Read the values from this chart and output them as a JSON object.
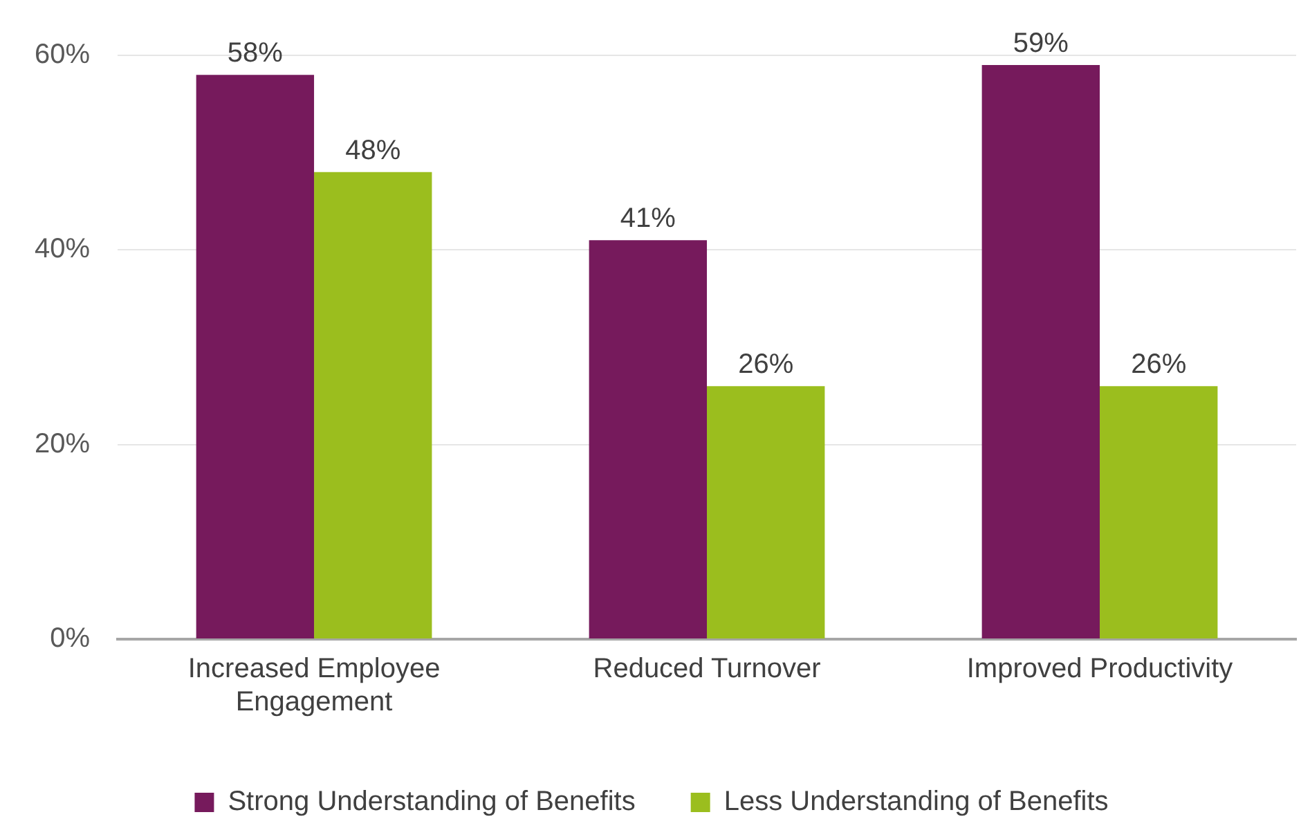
{
  "chart_data": {
    "type": "bar",
    "categories": [
      "Increased Employee Engagement",
      "Reduced Turnover",
      "Improved Productivity"
    ],
    "series": [
      {
        "name": "Strong Understanding of Benefits",
        "color": "#761a5c",
        "values": [
          58,
          41,
          59
        ]
      },
      {
        "name": "Less Understanding of Benefits",
        "color": "#9bbe1e",
        "values": [
          48,
          26,
          26
        ]
      }
    ],
    "ylim": [
      0,
      60
    ],
    "yticks": [
      {
        "value": 0,
        "label": "0%"
      },
      {
        "value": 20,
        "label": "20%"
      },
      {
        "value": 40,
        "label": "40%"
      },
      {
        "value": 60,
        "label": "60%"
      }
    ],
    "grid": "y",
    "legend": "bottom",
    "value_labels": [
      [
        "58%",
        "41%",
        "59%"
      ],
      [
        "48%",
        "26%",
        "26%"
      ]
    ]
  }
}
